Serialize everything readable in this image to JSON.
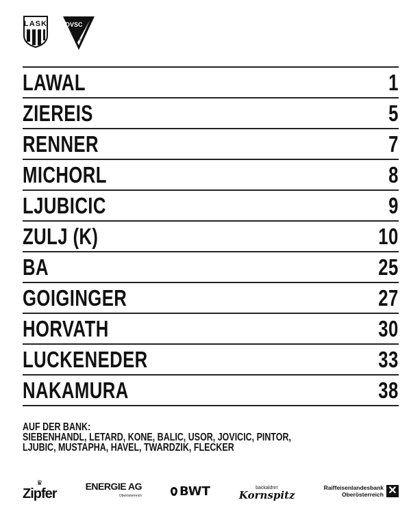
{
  "logos": {
    "home": "LASK",
    "away": "DVSC",
    "away_year": "1902"
  },
  "players": [
    {
      "name": "LAWAL",
      "number": "1"
    },
    {
      "name": "ZIEREIS",
      "number": "5"
    },
    {
      "name": "RENNER",
      "number": "7"
    },
    {
      "name": "MICHORL",
      "number": "8"
    },
    {
      "name": "LJUBICIC",
      "number": "9"
    },
    {
      "name": "ZULJ (K)",
      "number": "10"
    },
    {
      "name": "BA",
      "number": "25"
    },
    {
      "name": "GOIGINGER",
      "number": "27"
    },
    {
      "name": "HORVATH",
      "number": "30"
    },
    {
      "name": "LUCKENEDER",
      "number": "33"
    },
    {
      "name": "NAKAMURA",
      "number": "38"
    }
  ],
  "bench": {
    "title": "AUF DER BANK:",
    "line1": "SIEBENHANDL, LETARD, KONE, BALIC, USOR, JOVICIC, PINTOR,",
    "line2": "LJUBIC, MUSTAPHA, HAVEL, TWARDZIK, FLECKER"
  },
  "sponsors": {
    "zipfer": "Zipfer",
    "energie": "ENERGIE AG",
    "energie_sub": "Oberösterreich",
    "bwt": "BWT",
    "kornspitz_top": "backaldrin'",
    "kornspitz": "Kornspitz",
    "raiffeisen1": "Raiffeisenlandesbank",
    "raiffeisen2": "Oberösterreich"
  }
}
